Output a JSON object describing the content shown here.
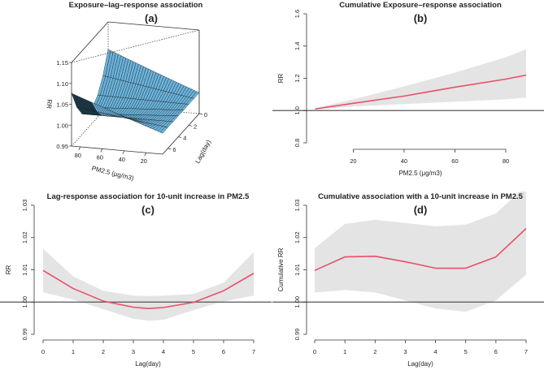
{
  "chart_data": [
    {
      "panel": "(a)",
      "type": "surface3d",
      "title": "Exposure–lag–response association",
      "label": "(a)",
      "xlabel": "PM2.5 (μg/m3)",
      "ylabel": "Lag(day)",
      "zlabel": "RR",
      "x_ticks": [
        "80",
        "60",
        "40",
        "20"
      ],
      "y_ticks": [
        "0",
        "2",
        "4",
        "6"
      ],
      "z_ticks": [
        "1.15",
        "1.10",
        "1.05",
        "1.00",
        "0.95"
      ],
      "xlim": [
        5,
        88
      ],
      "ylim": [
        0,
        7
      ],
      "zlim": [
        0.95,
        1.15
      ],
      "reference_pm": 5,
      "surface_color": "#6bb3dc"
    },
    {
      "panel": "(b)",
      "type": "line",
      "title": "Cumulative Exposure–response association",
      "label": "(b)",
      "xlabel": "PM2.5 (μg/m3)",
      "ylabel": "RR",
      "x": [
        5,
        20,
        40,
        60,
        80,
        88
      ],
      "values": [
        1.01,
        1.045,
        1.09,
        1.145,
        1.195,
        1.22
      ],
      "upper": [
        1.015,
        1.07,
        1.15,
        1.235,
        1.33,
        1.38
      ],
      "lower": [
        1.005,
        1.025,
        1.04,
        1.055,
        1.07,
        1.08
      ],
      "x_ticks": [
        20,
        40,
        60,
        80
      ],
      "y_ticks": [
        "0.8",
        "1.0",
        "1.2",
        "1.4",
        "1.6"
      ],
      "xlim": [
        5,
        88
      ],
      "ylim": [
        0.8,
        1.6
      ],
      "ref_line": 1.0,
      "line_color": "#e8506a",
      "band_color": "#e4e4e4"
    },
    {
      "panel": "(c)",
      "type": "line",
      "title": "Lag-response association for 10-unit increase in PM2.5",
      "label": "(c)",
      "xlabel": "Lag(day)",
      "ylabel": "RR",
      "x": [
        0,
        1,
        2,
        3,
        3.5,
        4,
        5,
        6,
        7
      ],
      "values": [
        1.0098,
        1.0042,
        1.0003,
        0.9984,
        0.998,
        0.9983,
        0.9999,
        1.0035,
        1.0089
      ],
      "upper": [
        1.0165,
        1.008,
        1.0035,
        1.002,
        1.0019,
        1.002,
        1.0025,
        1.006,
        1.0155
      ],
      "lower": [
        1.003,
        1.0008,
        0.9978,
        0.9948,
        0.9942,
        0.9945,
        0.9975,
        1.0002,
        1.002
      ],
      "x_ticks": [
        0,
        1,
        2,
        3,
        4,
        5,
        6,
        7
      ],
      "y_ticks": [
        "0.99",
        "1.00",
        "1.01",
        "1.02",
        "1.03"
      ],
      "xlim": [
        0,
        7
      ],
      "ylim": [
        0.99,
        1.03
      ],
      "ref_line": 1.0,
      "line_color": "#e8506a",
      "band_color": "#e4e4e4"
    },
    {
      "panel": "(d)",
      "type": "line",
      "title": "Cumulative association with a 10-unit increase in PM2.5",
      "label": "(d)",
      "xlabel": "Lag(day)",
      "ylabel": "Cumulative RR",
      "x": [
        0,
        1,
        2,
        3,
        4,
        5,
        6,
        7
      ],
      "values": [
        1.0098,
        1.014,
        1.0142,
        1.0125,
        1.0105,
        1.0105,
        1.014,
        1.0228
      ],
      "upper": [
        1.0167,
        1.0242,
        1.0255,
        1.0245,
        1.0235,
        1.024,
        1.0275,
        1.036
      ],
      "lower": [
        1.003,
        1.0037,
        1.003,
        1.0005,
        0.998,
        0.997,
        1.0005,
        1.0085
      ],
      "x_ticks": [
        0,
        1,
        2,
        3,
        4,
        5,
        6,
        7
      ],
      "y_ticks": [
        "0.99",
        "1.00",
        "1.01",
        "1.02",
        "1.03"
      ],
      "xlim": [
        0,
        7
      ],
      "ylim": [
        0.99,
        1.03
      ],
      "ref_line": 1.0,
      "line_color": "#e8506a",
      "band_color": "#e4e4e4"
    }
  ]
}
